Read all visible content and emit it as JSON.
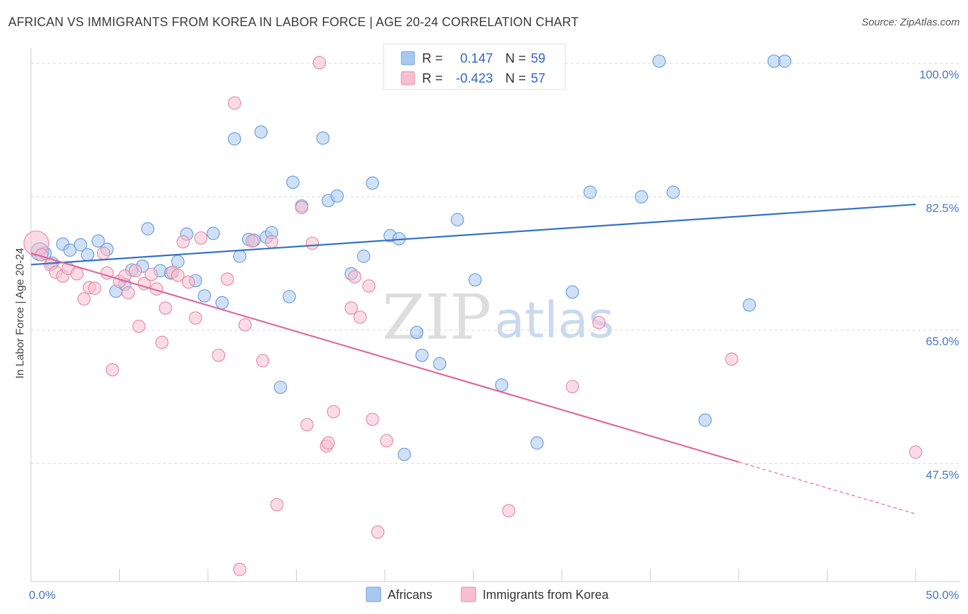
{
  "title": "AFRICAN VS IMMIGRANTS FROM KOREA IN LABOR FORCE | AGE 20-24 CORRELATION CHART",
  "source": "Source: ZipAtlas.com",
  "watermark": {
    "zip": "ZIP",
    "atlas": "atlas"
  },
  "colors": {
    "blue_fill": "#a9c8f0",
    "blue_stroke": "#6a9fdc",
    "blue_line": "#2f6fc9",
    "pink_fill": "#f7bfd0",
    "pink_stroke": "#e88aa8",
    "pink_line": "#e0679a",
    "grid": "#d8d8d8",
    "tick_text": "#4477cc"
  },
  "legend_top": {
    "rows": [
      {
        "r_label": "R =",
        "r_value": "0.147",
        "n_label": "N =",
        "n_value": "59"
      },
      {
        "r_label": "R =",
        "r_value": "-0.423",
        "n_label": "N =",
        "n_value": "57"
      }
    ]
  },
  "legend_bottom": [
    "Africans",
    "Immigrants from Korea"
  ],
  "chart_data": {
    "type": "scatter",
    "xlabel": "",
    "ylabel": "In Labor Force | Age 20-24",
    "xlim": [
      0,
      50
    ],
    "ylim": [
      32,
      102
    ],
    "x_tick_labels": [
      {
        "value": 0,
        "label": "0.0%"
      },
      {
        "value": 50,
        "label": "50.0%"
      }
    ],
    "y_tick_labels": [
      {
        "value": 47.5,
        "label": "47.5%"
      },
      {
        "value": 65.0,
        "label": "65.0%"
      },
      {
        "value": 82.5,
        "label": "82.5%"
      },
      {
        "value": 100.0,
        "label": "100.0%"
      }
    ],
    "grid": true,
    "legend_placement": "bottom",
    "series": [
      {
        "name": "Africans",
        "r": 0.147,
        "n": 59,
        "trend": {
          "x0": 0,
          "y0": 73.6,
          "x1": 50,
          "y1": 81.5
        },
        "points": [
          [
            0.5,
            75.3
          ],
          [
            0.8,
            75.1
          ],
          [
            1.2,
            73.8
          ],
          [
            1.8,
            76.3
          ],
          [
            2.2,
            75.5
          ],
          [
            2.8,
            76.2
          ],
          [
            3.2,
            74.9
          ],
          [
            3.8,
            76.7
          ],
          [
            4.3,
            75.6
          ],
          [
            4.8,
            70.1
          ],
          [
            5.3,
            71.0
          ],
          [
            5.7,
            72.9
          ],
          [
            6.3,
            73.4
          ],
          [
            6.6,
            78.3
          ],
          [
            7.3,
            72.8
          ],
          [
            7.9,
            72.5
          ],
          [
            8.3,
            74.0
          ],
          [
            8.8,
            77.6
          ],
          [
            9.3,
            71.5
          ],
          [
            9.8,
            69.5
          ],
          [
            10.3,
            77.7
          ],
          [
            10.8,
            68.6
          ],
          [
            11.5,
            90.1
          ],
          [
            11.8,
            74.7
          ],
          [
            12.3,
            76.9
          ],
          [
            12.6,
            76.8
          ],
          [
            13.0,
            91.0
          ],
          [
            13.3,
            77.2
          ],
          [
            13.6,
            77.8
          ],
          [
            14.1,
            57.5
          ],
          [
            14.6,
            69.4
          ],
          [
            14.8,
            84.4
          ],
          [
            15.3,
            81.3
          ],
          [
            16.5,
            90.2
          ],
          [
            16.8,
            82.0
          ],
          [
            17.3,
            82.6
          ],
          [
            18.1,
            72.4
          ],
          [
            18.8,
            74.7
          ],
          [
            19.3,
            84.3
          ],
          [
            20.3,
            77.4
          ],
          [
            20.8,
            77.0
          ],
          [
            21.1,
            48.7
          ],
          [
            21.8,
            64.7
          ],
          [
            22.1,
            61.7
          ],
          [
            23.1,
            60.6
          ],
          [
            24.1,
            79.5
          ],
          [
            25.1,
            71.6
          ],
          [
            25.5,
            100.3
          ],
          [
            26.6,
            57.8
          ],
          [
            28.6,
            50.2
          ],
          [
            30.6,
            70.0
          ],
          [
            31.6,
            83.1
          ],
          [
            34.5,
            82.5
          ],
          [
            35.5,
            100.3
          ],
          [
            36.3,
            83.1
          ],
          [
            38.1,
            53.2
          ],
          [
            40.6,
            68.3
          ],
          [
            42.0,
            100.3
          ],
          [
            42.6,
            100.3
          ]
        ]
      },
      {
        "name": "Immigrants from Korea",
        "r": -0.423,
        "n": 57,
        "trend": {
          "x0": 0,
          "y0": 75.1,
          "x1": 40,
          "y1": 47.7
        },
        "trend_dashed_to": {
          "x": 50,
          "y": 40.9
        },
        "points": [
          [
            0.3,
            76.4
          ],
          [
            0.6,
            74.9
          ],
          [
            1.1,
            73.6
          ],
          [
            1.4,
            72.6
          ],
          [
            1.8,
            72.1
          ],
          [
            2.1,
            73.1
          ],
          [
            2.6,
            72.4
          ],
          [
            3.0,
            69.1
          ],
          [
            3.3,
            70.6
          ],
          [
            3.6,
            70.5
          ],
          [
            4.1,
            75.1
          ],
          [
            4.3,
            72.5
          ],
          [
            4.6,
            59.8
          ],
          [
            5.0,
            71.4
          ],
          [
            5.3,
            72.1
          ],
          [
            5.5,
            69.9
          ],
          [
            5.9,
            72.8
          ],
          [
            6.1,
            65.5
          ],
          [
            6.4,
            71.1
          ],
          [
            6.8,
            72.3
          ],
          [
            7.1,
            70.4
          ],
          [
            7.4,
            63.4
          ],
          [
            7.6,
            67.9
          ],
          [
            8.0,
            72.6
          ],
          [
            8.3,
            72.2
          ],
          [
            8.6,
            76.6
          ],
          [
            8.9,
            71.3
          ],
          [
            9.3,
            66.6
          ],
          [
            9.6,
            77.1
          ],
          [
            10.6,
            61.7
          ],
          [
            11.1,
            71.7
          ],
          [
            11.5,
            94.8
          ],
          [
            11.8,
            33.6
          ],
          [
            12.1,
            65.7
          ],
          [
            12.5,
            76.7
          ],
          [
            13.1,
            61.0
          ],
          [
            13.6,
            76.6
          ],
          [
            13.9,
            42.1
          ],
          [
            15.3,
            81.1
          ],
          [
            15.6,
            52.6
          ],
          [
            15.9,
            76.4
          ],
          [
            16.3,
            100.1
          ],
          [
            16.7,
            49.8
          ],
          [
            16.8,
            50.2
          ],
          [
            17.1,
            54.3
          ],
          [
            18.1,
            67.9
          ],
          [
            18.3,
            72.0
          ],
          [
            18.6,
            66.7
          ],
          [
            19.1,
            70.8
          ],
          [
            19.3,
            53.3
          ],
          [
            19.6,
            38.5
          ],
          [
            20.1,
            50.5
          ],
          [
            27.0,
            41.3
          ],
          [
            30.6,
            57.6
          ],
          [
            32.1,
            66.0
          ],
          [
            39.6,
            61.2
          ],
          [
            50.0,
            49.0
          ]
        ]
      }
    ]
  }
}
